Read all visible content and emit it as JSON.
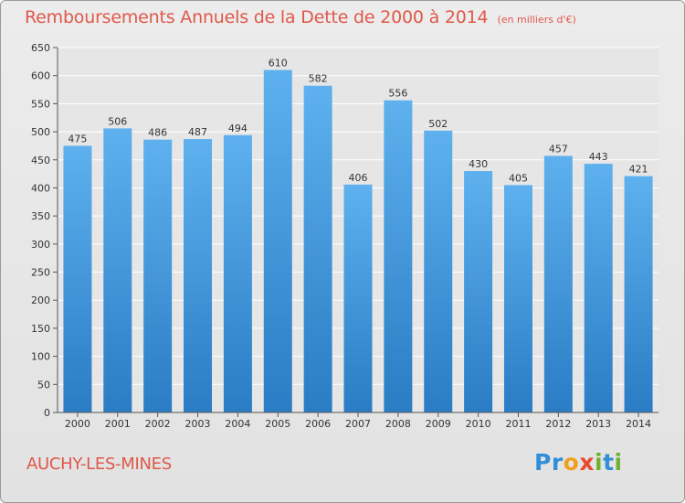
{
  "title": {
    "main": "Remboursements Annuels de la Dette de 2000 à 2014",
    "unit": "(en milliers d'€)"
  },
  "commune": "AUCHY-LES-MINES",
  "logo": {
    "text": "Proxiti",
    "letters": [
      "P",
      "r",
      "o",
      "x",
      "i",
      "t",
      "i"
    ],
    "letter_colors": [
      "#2f8fd8",
      "#2f8fd8",
      "#f0a020",
      "#e84a30",
      "#70b030",
      "#2f8fd8",
      "#70b030"
    ]
  },
  "colors": {
    "bar_top": "#5eb1ee",
    "bar_bottom": "#2a7cc4",
    "accent": "#e0584a",
    "grid": "#ffffff",
    "axis": "#555555"
  },
  "chart_data": {
    "type": "bar",
    "title": "Remboursements Annuels de la Dette de 2000 à 2014",
    "subtitle": "(en milliers d'€)",
    "categories": [
      "2000",
      "2001",
      "2002",
      "2003",
      "2004",
      "2005",
      "2006",
      "2007",
      "2008",
      "2009",
      "2010",
      "2011",
      "2012",
      "2013",
      "2014"
    ],
    "values": [
      475,
      506,
      486,
      487,
      494,
      610,
      582,
      406,
      556,
      502,
      430,
      405,
      457,
      443,
      421
    ],
    "data_labels": [
      "475",
      "506",
      "486",
      "487",
      "494",
      "610",
      "582",
      "406",
      "556",
      "502",
      "430",
      "405",
      "457",
      "443",
      "421"
    ],
    "yticks": [
      0,
      50,
      100,
      150,
      200,
      250,
      300,
      350,
      400,
      450,
      500,
      550,
      600,
      650
    ],
    "xlabel": "",
    "ylabel": "",
    "ylim": [
      0,
      650
    ],
    "grid": true,
    "legend": "none"
  }
}
